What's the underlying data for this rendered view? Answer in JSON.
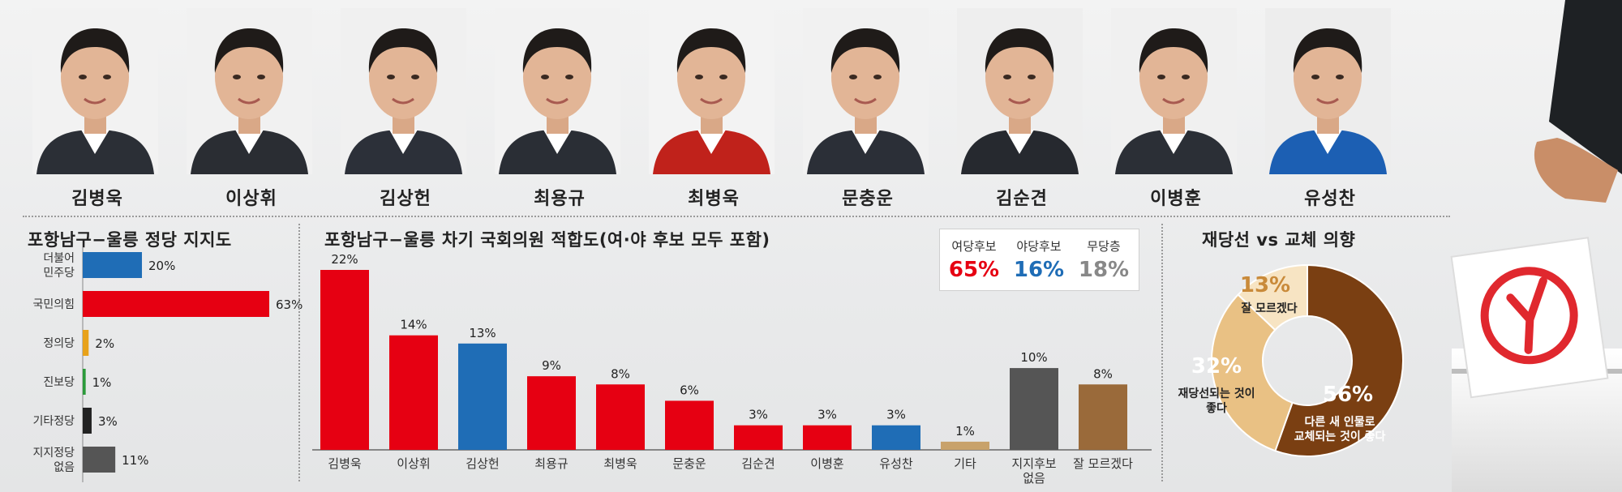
{
  "candidates": [
    "김병욱",
    "이상휘",
    "김상헌",
    "최용규",
    "최병욱",
    "문충운",
    "김순견",
    "이병훈",
    "유성찬"
  ],
  "chart_data": [
    {
      "type": "bar",
      "orientation": "horizontal",
      "title": "포항남구−울릉 정당 지지도",
      "categories": [
        "더불어\n민주당",
        "국민의힘",
        "정의당",
        "진보당",
        "기타정당",
        "지지정당\n없음"
      ],
      "category_lines": [
        [
          "더불어",
          "민주당"
        ],
        [
          "국민의힘"
        ],
        [
          "정의당"
        ],
        [
          "진보당"
        ],
        [
          "기타정당"
        ],
        [
          "지지정당",
          "없음"
        ]
      ],
      "values": [
        20,
        63,
        2,
        1,
        3,
        11
      ],
      "labels": [
        "20%",
        "63%",
        "2%",
        "1%",
        "3%",
        "11%"
      ],
      "colors": [
        "#1f6db6",
        "#e60012",
        "#e8a21a",
        "#2b9a3a",
        "#222222",
        "#555555"
      ],
      "xlim": [
        0,
        63
      ]
    },
    {
      "type": "bar",
      "title": "포항남구−울릉 차기 국회의원 적합도(여·야 후보 모두 포함)",
      "categories": [
        "김병욱",
        "이상휘",
        "김상헌",
        "최용규",
        "최병욱",
        "문충운",
        "김순견",
        "이병훈",
        "유성찬",
        "기타",
        "지지후보\n없음",
        "잘 모르겠다"
      ],
      "category_lines": [
        [
          "김병욱"
        ],
        [
          "이상휘"
        ],
        [
          "김상헌"
        ],
        [
          "최용규"
        ],
        [
          "최병욱"
        ],
        [
          "문충운"
        ],
        [
          "김순견"
        ],
        [
          "이병훈"
        ],
        [
          "유성찬"
        ],
        [
          "기타"
        ],
        [
          "지지후보",
          "없음"
        ],
        [
          "잘 모르겠다"
        ]
      ],
      "values": [
        22,
        14,
        13,
        9,
        8,
        6,
        3,
        3,
        3,
        1,
        10,
        8
      ],
      "labels": [
        "22%",
        "14%",
        "13%",
        "9%",
        "8%",
        "6%",
        "3%",
        "3%",
        "3%",
        "1%",
        "10%",
        "8%"
      ],
      "colors": [
        "#e60012",
        "#e60012",
        "#1f6db6",
        "#e60012",
        "#e60012",
        "#e60012",
        "#e60012",
        "#e60012",
        "#1f6db6",
        "#c8a26a",
        "#555555",
        "#9a6a3a"
      ],
      "ylim": [
        0,
        22
      ],
      "legend": {
        "position": "top-right",
        "items": [
          {
            "label": "여당후보",
            "value": "65%",
            "color": "#e60012"
          },
          {
            "label": "야당후보",
            "value": "16%",
            "color": "#1f6db6"
          },
          {
            "label": "무당층",
            "value": "18%",
            "color": "#888888"
          }
        ]
      }
    },
    {
      "type": "pie",
      "donut": true,
      "title": "재당선 vs 교체 의향",
      "slices": [
        {
          "label": "다른 새 인물로 교체되는 것이 좋다",
          "lines": [
            "다른 새 인물로",
            "교체되는 것이 좋다"
          ],
          "value": 56,
          "text": "56%",
          "color": "#7a3f12"
        },
        {
          "label": "재당선되는 것이 좋다",
          "lines": [
            "재당선되는 것이",
            "좋다"
          ],
          "value": 32,
          "text": "32%",
          "color": "#e9c184"
        },
        {
          "label": "잘 모르겠다",
          "lines": [
            "잘 모르겠다"
          ],
          "value": 13,
          "text": "13%",
          "color": "#f7e4c3"
        }
      ]
    }
  ]
}
